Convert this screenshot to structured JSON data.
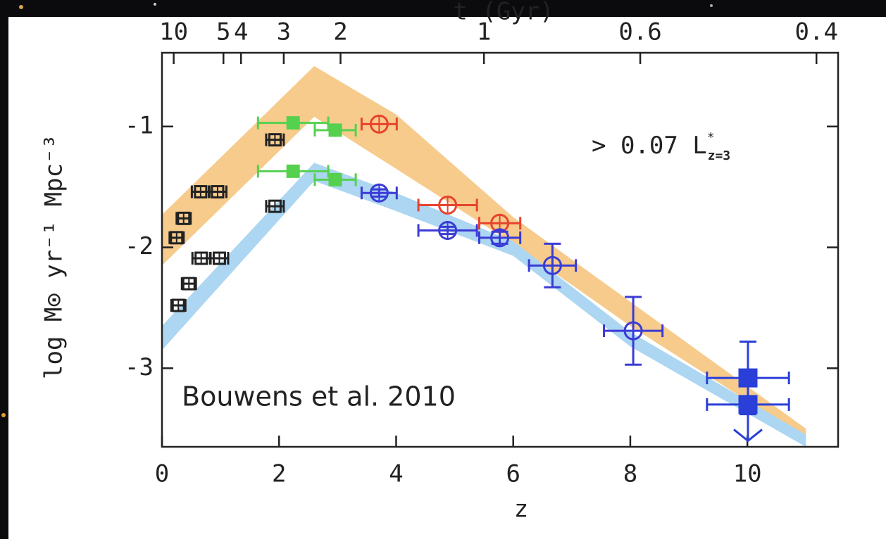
{
  "chart_data": {
    "type": "scatter",
    "xlabel": "z",
    "x2label": "t (Gyr)",
    "ylabel": "log M⊙ yr⁻¹ Mpc⁻³",
    "annotation": "> 0.07 L",
    "annotation_sup": "*",
    "annotation_sub": "z=3",
    "credit": "Bouwens et al. 2010",
    "xlim": [
      0,
      11.55
    ],
    "ylim": [
      -3.65,
      -0.39
    ],
    "xticks": [
      0,
      2,
      4,
      6,
      8,
      10
    ],
    "yticks": [
      -1,
      -2,
      -3
    ],
    "x2ticks": [
      {
        "value": 0.2,
        "label": "10"
      },
      {
        "value": 1.05,
        "label": "5"
      },
      {
        "value": 1.35,
        "label": "4"
      },
      {
        "value": 2.08,
        "label": "3"
      },
      {
        "value": 3.05,
        "label": "2"
      },
      {
        "value": 5.5,
        "label": "1"
      },
      {
        "value": 8.17,
        "label": "0.6"
      },
      {
        "value": 11.18,
        "label": "0.4"
      }
    ],
    "bands": [
      {
        "color": "#f6cb8c",
        "x": [
          0,
          2.6,
          4,
          6,
          8,
          11
        ],
        "upper": [
          -1.73,
          -0.5,
          -0.9,
          -1.75,
          -2.45,
          -3.5
        ],
        "lower": [
          -2.15,
          -0.92,
          -1.35,
          -1.97,
          -2.65,
          -3.58
        ]
      },
      {
        "color": "#acd6f2",
        "x": [
          0,
          2.6,
          4,
          6,
          8,
          11
        ],
        "upper": [
          -2.65,
          -1.3,
          -1.55,
          -1.95,
          -2.7,
          -3.55
        ],
        "lower": [
          -2.85,
          -1.45,
          -1.7,
          -2.07,
          -2.82,
          -3.65
        ]
      }
    ],
    "series": [
      {
        "color": "#222222",
        "marker": "square-open",
        "x": [
          0.25,
          0.37,
          0.66,
          0.95,
          1.93
        ],
        "values": [
          -1.92,
          -1.76,
          -1.54,
          -1.54,
          -1.11
        ],
        "xerr": [
          0.12,
          0.12,
          0.15,
          0.15,
          0.15
        ]
      },
      {
        "color": "#222222",
        "marker": "square-open",
        "x": [
          0.28,
          0.46,
          0.67,
          0.98,
          1.93
        ],
        "values": [
          -2.48,
          -2.3,
          -2.09,
          -2.09,
          -1.66
        ],
        "xerr": [
          0.12,
          0.12,
          0.15,
          0.15,
          0.15
        ]
      },
      {
        "color": "#55d04f",
        "marker": "square",
        "x": [
          2.24,
          2.96
        ],
        "values": [
          -0.97,
          -1.03
        ],
        "xerr": [
          0.6,
          0.35
        ]
      },
      {
        "color": "#55d04f",
        "marker": "square",
        "x": [
          2.24,
          2.96
        ],
        "values": [
          -1.37,
          -1.44
        ],
        "xerr": [
          0.6,
          0.35
        ]
      },
      {
        "color": "#e8432e",
        "marker": "circle-open",
        "x": [
          3.71,
          4.88,
          5.77
        ],
        "values": [
          -0.98,
          -1.65,
          -1.8
        ],
        "xerr": [
          0.3,
          0.5,
          0.35
        ]
      },
      {
        "color": "#3b3bd6",
        "marker": "circle-open",
        "x": [
          3.71,
          4.88,
          5.77,
          6.67,
          8.05
        ],
        "values": [
          -1.55,
          -1.86,
          -1.92,
          -2.15,
          -2.69
        ],
        "xerr": [
          0.3,
          0.5,
          0.35,
          0.4,
          0.5
        ],
        "yerr": [
          0.03,
          0.03,
          0.05,
          0.18,
          0.28
        ]
      },
      {
        "color": "#2a3fd8",
        "marker": "square",
        "x": [
          10.01
        ],
        "values": [
          -3.08
        ],
        "xerr": [
          0.7
        ],
        "yerr": [
          0.3
        ]
      },
      {
        "color": "#2a3fd8",
        "marker": "square",
        "x": [
          10.01
        ],
        "values": [
          -3.3
        ],
        "xerr": [
          0.7
        ],
        "yerr": [
          0.3
        ],
        "upper_limit": true
      }
    ]
  }
}
